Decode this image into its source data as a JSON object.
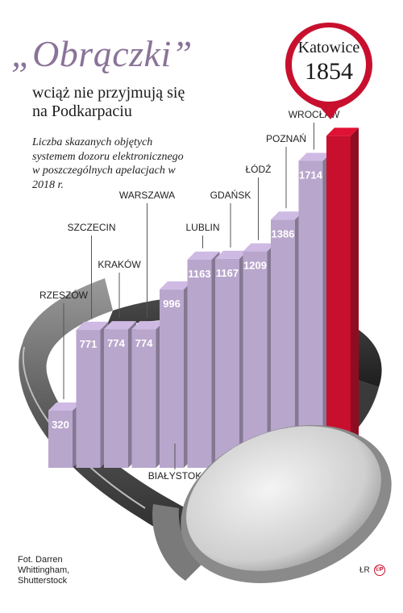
{
  "title": "„Obrączki”",
  "subtitle_line1": "wciąż nie przyjmują się",
  "subtitle_line2": "na Podkarpaciu",
  "description": "Liczba skazanych objętych systemem dozoru elektronicznego w poszczególnych apelacjach w 2018 r.",
  "credit_line1": "Fot. Darren",
  "credit_line2": "Whittingham,",
  "credit_line3": "Shutterstock",
  "logo_initials": "ŁR",
  "logo_mark": "©P",
  "colors": {
    "bar": "#b9a6cc",
    "highlight": "#c8102e",
    "title": "#8a7398"
  },
  "chart_data": {
    "type": "bar",
    "categories": [
      "RZESZÓW",
      "SZCZECIN",
      "KRAKÓW",
      "WARSZAWA",
      "BIAŁYSTOK",
      "LUBLIN",
      "GDAŃSK",
      "ŁÓDŹ",
      "POZNAŃ",
      "WROCŁAW",
      "Katowice"
    ],
    "values": [
      320,
      771,
      774,
      774,
      996,
      1163,
      1167,
      1209,
      1386,
      1714,
      1854
    ],
    "value_labels": [
      "320",
      "771",
      "774",
      "774",
      "996",
      "1163",
      "1167",
      "1209",
      "1386",
      "1714",
      "1854"
    ],
    "highlight": "Katowice",
    "ylim": [
      0,
      1900
    ],
    "grid": false,
    "legend": "none"
  }
}
